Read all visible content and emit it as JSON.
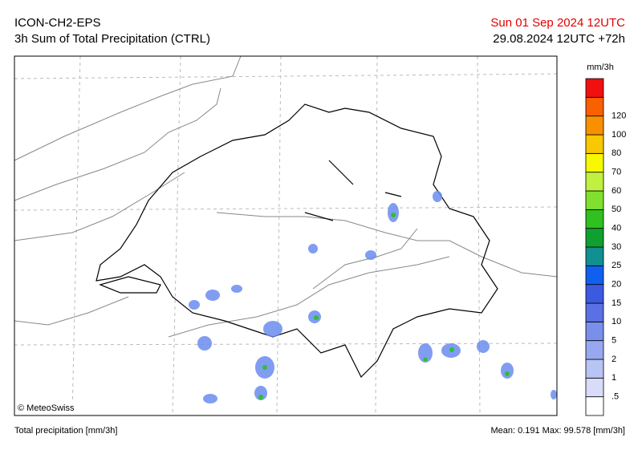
{
  "header": {
    "model": "ICON-CH2-EPS",
    "product": "3h Sum of Total Precipitation (CTRL)",
    "valid_time": "Sun 01 Sep 2024 12UTC",
    "run_time": "29.08.2024 12UTC +72h"
  },
  "legend": {
    "unit": "mm/3h",
    "labels": [
      ".5",
      "1",
      "2",
      "5",
      "10",
      "15",
      "20",
      "25",
      "30",
      "40",
      "50",
      "60",
      "70",
      "80",
      "100",
      "120"
    ],
    "colors": [
      "#ffffff",
      "#d8dcf8",
      "#b8c4f4",
      "#98a8f0",
      "#7890ec",
      "#5a70e4",
      "#3c5ae0",
      "#1060f0",
      "#109090",
      "#10a030",
      "#30c020",
      "#80e030",
      "#c0f040",
      "#f8f800",
      "#f8c800",
      "#f89000",
      "#f86000",
      "#f01010"
    ]
  },
  "map": {
    "copyright": "© MeteoSwiss"
  },
  "footer": {
    "label": "Total precipitation [mm/3h]",
    "stats": "Mean:  0.191 Max:  99.578 [mm/3h]"
  }
}
